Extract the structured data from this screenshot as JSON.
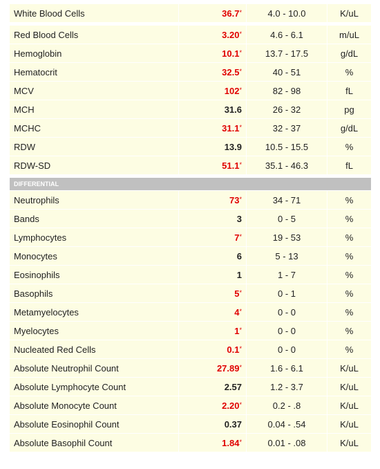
{
  "groups": [
    {
      "rows": [
        {
          "name": "White Blood Cells",
          "value": "36.7",
          "flag": "*",
          "range": "4.0 - 10.0",
          "unit": "K/uL"
        }
      ]
    },
    {
      "rows": [
        {
          "name": "Red Blood Cells",
          "value": "3.20",
          "flag": "*",
          "range": "4.6 - 6.1",
          "unit": "m/uL"
        },
        {
          "name": "Hemoglobin",
          "value": "10.1",
          "flag": "*",
          "range": "13.7 - 17.5",
          "unit": "g/dL"
        },
        {
          "name": "Hematocrit",
          "value": "32.5",
          "flag": "*",
          "range": "40 - 51",
          "unit": "%"
        },
        {
          "name": "MCV",
          "value": "102",
          "flag": "*",
          "range": "82 - 98",
          "unit": "fL"
        },
        {
          "name": "MCH",
          "value": "31.6",
          "range": "26 - 32",
          "unit": "pg"
        },
        {
          "name": "MCHC",
          "value": "31.1",
          "flag": "*",
          "range": "32 - 37",
          "unit": "g/dL"
        },
        {
          "name": "RDW",
          "value": "13.9",
          "range": "10.5 - 15.5",
          "unit": "%"
        },
        {
          "name": "RDW-SD",
          "value": "51.1",
          "flag": "*",
          "range": "35.1 - 46.3",
          "unit": "fL"
        }
      ]
    },
    {
      "heading": "DIFFERENTIAL",
      "rows": [
        {
          "name": "Neutrophils",
          "value": "73",
          "flag": "*",
          "range": "34 - 71",
          "unit": "%"
        },
        {
          "name": "Bands",
          "value": "3",
          "range": "0 - 5",
          "unit": "%"
        },
        {
          "name": "Lymphocytes",
          "value": "7",
          "flag": "*",
          "range": "19 - 53",
          "unit": "%"
        },
        {
          "name": "Monocytes",
          "value": "6",
          "range": "5 - 13",
          "unit": "%"
        },
        {
          "name": "Eosinophils",
          "value": "1",
          "range": "1 - 7",
          "unit": "%"
        },
        {
          "name": "Basophils",
          "value": "5",
          "flag": "*",
          "range": "0 - 1",
          "unit": "%"
        },
        {
          "name": "Metamyelocytes",
          "value": "4",
          "flag": "*",
          "range": "0 - 0",
          "unit": "%"
        },
        {
          "name": "Myelocytes",
          "value": "1",
          "flag": "*",
          "range": "0 - 0",
          "unit": "%"
        },
        {
          "name": "Nucleated Red Cells",
          "value": "0.1",
          "flag": "*",
          "range": "0 - 0",
          "unit": "%"
        },
        {
          "name": "Absolute Neutrophil Count",
          "value": "27.89",
          "flag": "*",
          "range": "1.6 - 6.1",
          "unit": "K/uL"
        },
        {
          "name": "Absolute Lymphocyte Count",
          "value": "2.57",
          "range": "1.2 - 3.7",
          "unit": "K/uL"
        },
        {
          "name": "Absolute Monocyte Count",
          "value": "2.20",
          "flag": "*",
          "range": "0.2 - .8",
          "unit": "K/uL"
        },
        {
          "name": "Absolute Eosinophil Count",
          "value": "0.37",
          "range": "0.04 - .54",
          "unit": "K/uL"
        },
        {
          "name": "Absolute Basophil Count",
          "value": "1.84",
          "flag": "*",
          "range": "0.01 - .08",
          "unit": "K/uL"
        }
      ]
    }
  ]
}
